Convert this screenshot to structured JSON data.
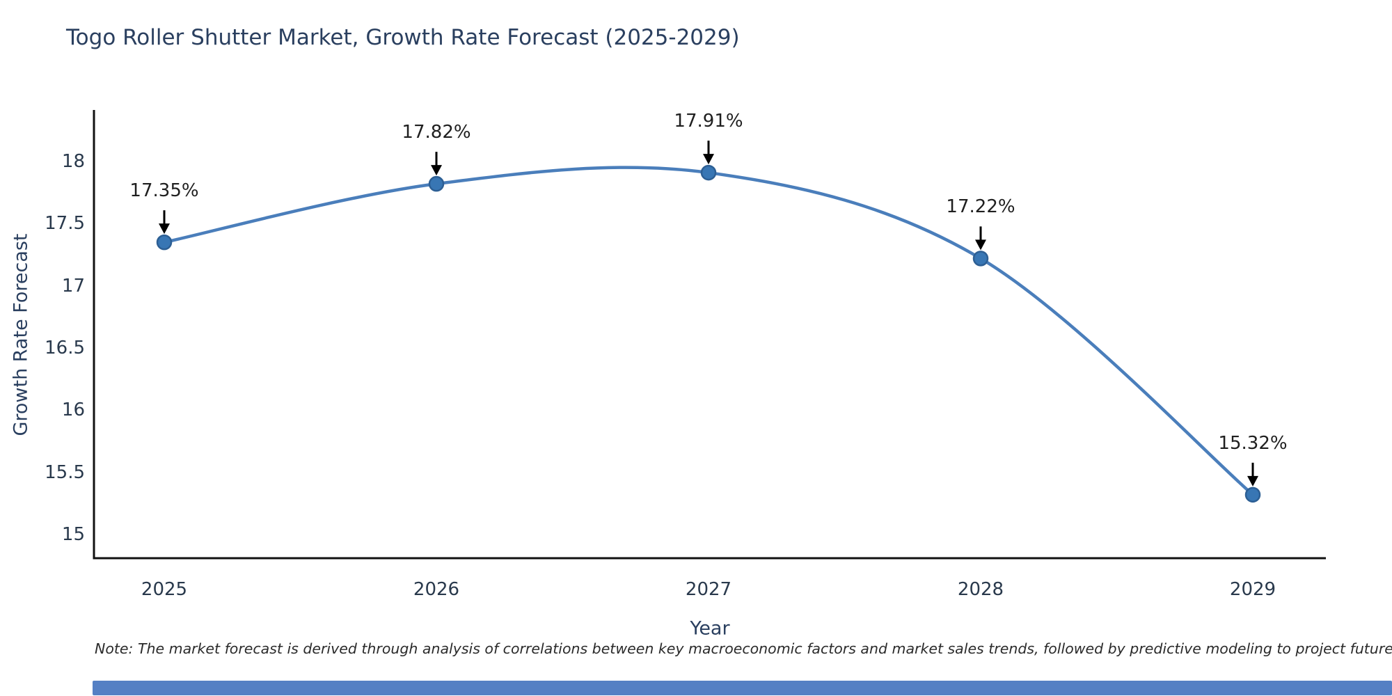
{
  "title": "Togo Roller Shutter Market, Growth Rate Forecast (2025-2029)",
  "note": "Note: The market forecast is derived through analysis of correlations between key macroeconomic factors and market sales trends, followed by predictive modeling to project future sal",
  "chart_data": {
    "type": "line",
    "title": "Togo Roller Shutter Market, Growth Rate Forecast (2025-2029)",
    "xlabel": "Year",
    "ylabel": "Growth Rate Forecast",
    "x": [
      2025,
      2026,
      2027,
      2028,
      2029
    ],
    "values": [
      17.35,
      17.82,
      17.91,
      17.22,
      15.32
    ],
    "point_labels": [
      "17.35%",
      "17.82%",
      "17.91%",
      "17.22%",
      "15.32%"
    ],
    "xtick_labels": [
      "2025",
      "2026",
      "2027",
      "2028",
      "2029"
    ],
    "ytick_values": [
      18,
      17.5,
      17,
      16.5,
      16,
      15.5,
      15
    ],
    "ytick_labels": [
      "18",
      "17.5",
      "17",
      "16.5",
      "16",
      "15.5",
      "15"
    ],
    "ylim": [
      14.8,
      18.42
    ],
    "grid": false,
    "legend": null,
    "curve": "spline",
    "line_color": "#4a7ebb",
    "marker_color": "#3876b4",
    "marker_edge_color": "#2d5f94",
    "arrow_color": "#000000",
    "spine_color": "#111111",
    "title_color": "#2a3f5f",
    "tick_color": "#29394c"
  },
  "footer_bar_color": "#5580c4"
}
